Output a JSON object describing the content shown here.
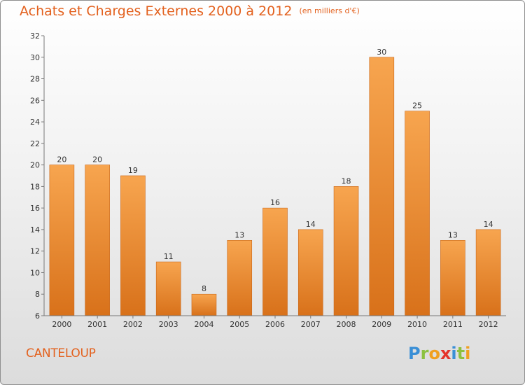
{
  "header": {
    "title": "Achats et Charges Externes 2000 à 2012",
    "unit": "(en milliers d'€)"
  },
  "footer": {
    "place": "CANTELOUP",
    "logo_letters": [
      {
        "ch": "P",
        "color": "#3a8fd6"
      },
      {
        "ch": "r",
        "color": "#8cc13f"
      },
      {
        "ch": "o",
        "color": "#f0a020"
      },
      {
        "ch": "x",
        "color": "#e5332a"
      },
      {
        "ch": "i",
        "color": "#3a8fd6"
      },
      {
        "ch": "t",
        "color": "#8cc13f"
      },
      {
        "ch": "i",
        "color": "#f0a020"
      }
    ]
  },
  "colors": {
    "bar_light": "#f7a54f",
    "bar_dark": "#d8711a",
    "bar_edge": "#c9671a",
    "text_accent": "#e3611e"
  },
  "chart_data": {
    "type": "bar",
    "title": "Achats et Charges Externes 2000 à 2012",
    "subtitle": "(en milliers d'€)",
    "categories": [
      "2000",
      "2001",
      "2002",
      "2003",
      "2004",
      "2005",
      "2006",
      "2007",
      "2008",
      "2009",
      "2010",
      "2011",
      "2012"
    ],
    "values": [
      20,
      20,
      19,
      11,
      8,
      13,
      16,
      14,
      18,
      30,
      25,
      13,
      14
    ],
    "ylim": [
      6,
      32
    ],
    "yticks": [
      6,
      8,
      10,
      12,
      14,
      16,
      18,
      20,
      22,
      24,
      26,
      28,
      30,
      32
    ],
    "grid": false,
    "data_labels": true
  }
}
